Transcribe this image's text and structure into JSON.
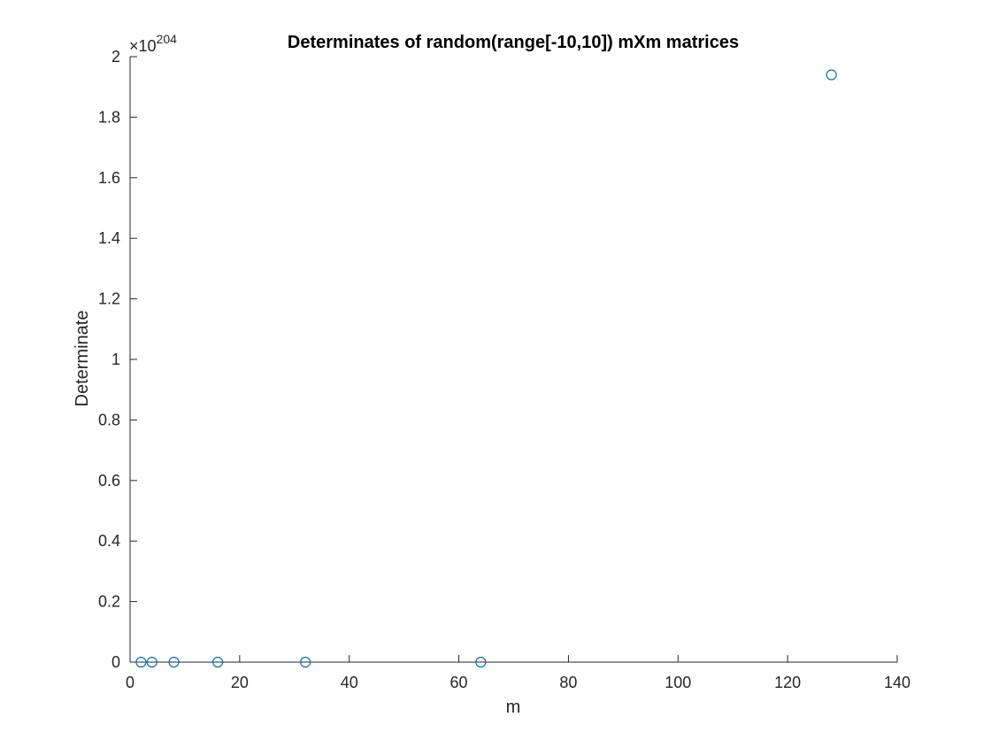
{
  "chart_data": {
    "type": "scatter",
    "title": "Determinates of random(range[-10,10]) mXm matrices",
    "xlabel": "m",
    "ylabel": "Determinate",
    "y_exponent": {
      "prefix": "×10",
      "power": "204"
    },
    "xlim": [
      0,
      140
    ],
    "ylim": [
      0,
      2
    ],
    "y_scale_factor": "1e204",
    "x_ticks": [
      {
        "value": 0,
        "label": "0"
      },
      {
        "value": 20,
        "label": "20"
      },
      {
        "value": 40,
        "label": "40"
      },
      {
        "value": 60,
        "label": "60"
      },
      {
        "value": 80,
        "label": "80"
      },
      {
        "value": 100,
        "label": "100"
      },
      {
        "value": 120,
        "label": "120"
      },
      {
        "value": 140,
        "label": "140"
      }
    ],
    "y_ticks": [
      {
        "value": 0,
        "label": "0"
      },
      {
        "value": 0.2,
        "label": "0.2"
      },
      {
        "value": 0.4,
        "label": "0.4"
      },
      {
        "value": 0.6,
        "label": "0.6"
      },
      {
        "value": 0.8,
        "label": "0.8"
      },
      {
        "value": 1,
        "label": "1"
      },
      {
        "value": 1.2,
        "label": "1.2"
      },
      {
        "value": 1.4,
        "label": "1.4"
      },
      {
        "value": 1.6,
        "label": "1.6"
      },
      {
        "value": 1.8,
        "label": "1.8"
      },
      {
        "value": 2,
        "label": "2"
      }
    ],
    "grid": false,
    "legend": "none",
    "series": [
      {
        "color": "#0072BD",
        "marker": "circle-open",
        "points": [
          {
            "x": 2,
            "y": 0
          },
          {
            "x": 4,
            "y": 0
          },
          {
            "x": 8,
            "y": 0
          },
          {
            "x": 16,
            "y": 0
          },
          {
            "x": 32,
            "y": 0
          },
          {
            "x": 64,
            "y": 0
          },
          {
            "x": 128,
            "y": 1.94
          }
        ]
      }
    ],
    "axis_color": "#262626"
  }
}
